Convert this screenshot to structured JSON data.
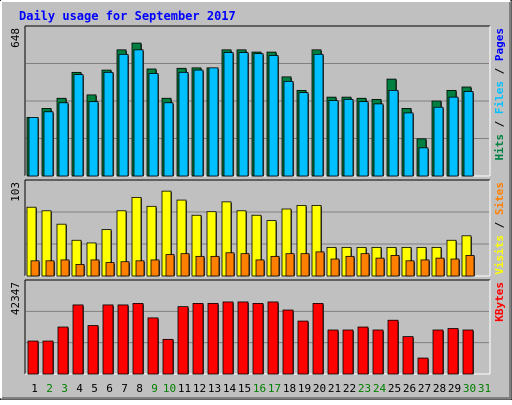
{
  "chart_data": {
    "type": "bar",
    "title": "Daily usage for September 2017",
    "x": [
      "1",
      "2",
      "3",
      "4",
      "5",
      "6",
      "7",
      "8",
      "9",
      "10",
      "11",
      "12",
      "13",
      "14",
      "15",
      "16",
      "17",
      "18",
      "19",
      "20",
      "21",
      "22",
      "23",
      "24",
      "25",
      "26",
      "27",
      "28",
      "29",
      "30",
      "31"
    ],
    "weekend_days": [
      "2",
      "3",
      "9",
      "10",
      "16",
      "17",
      "23",
      "24",
      "30",
      "31"
    ],
    "panels": [
      {
        "name": "hits-files-pages",
        "ylabel_parts": [
          "Pages",
          "Files",
          "Hits"
        ],
        "ymax_label": "648",
        "ylim": [
          0,
          648
        ],
        "series": [
          {
            "name": "Hits",
            "color": "#008040",
            "values": [
              260,
              300,
              345,
              460,
              360,
              470,
              560,
              590,
              475,
              345,
              478,
              480,
              480,
              560,
              560,
              550,
              550,
              440,
              380,
              560,
              350,
              350,
              345,
              340,
              430,
              300,
              165,
              333,
              380,
              395,
              0
            ]
          },
          {
            "name": "Files",
            "color": "#00c0ff",
            "values": [
              260,
              285,
              325,
              450,
              330,
              460,
              540,
              560,
              455,
              325,
              460,
              470,
              480,
              548,
              548,
              543,
              535,
              420,
              370,
              540,
              335,
              340,
              330,
              320,
              380,
              280,
              125,
              305,
              350,
              375,
              0
            ]
          },
          {
            "name": "Pages",
            "color": "#0000ff",
            "values": [
              0,
              0,
              0,
              0,
              0,
              0,
              0,
              0,
              0,
              0,
              0,
              0,
              0,
              0,
              0,
              0,
              0,
              0,
              0,
              0,
              0,
              0,
              0,
              0,
              0,
              0,
              0,
              0,
              0,
              0,
              0
            ]
          }
        ]
      },
      {
        "name": "visits-sites",
        "ylabel_parts": [
          "Sites",
          "Visits"
        ],
        "ymax_label": "103",
        "ylim": [
          0,
          103
        ],
        "series": [
          {
            "name": "Visits",
            "color": "#ffff00",
            "values": [
              77,
              73,
              58,
              40,
              37,
              52,
              73,
              88,
              78,
              95,
              85,
              68,
              72,
              83,
              73,
              68,
              62,
              75,
              79,
              79,
              32,
              32,
              32,
              32,
              32,
              32,
              32,
              32,
              40,
              45,
              0
            ]
          },
          {
            "name": "Sites",
            "color": "#ff8000",
            "values": [
              17,
              17,
              18,
              13,
              18,
              15,
              16,
              17,
              18,
              24,
              25,
              22,
              22,
              26,
              25,
              18,
              22,
              25,
              25,
              27,
              19,
              22,
              25,
              20,
              23,
              17,
              18,
              20,
              19,
              23,
              0
            ]
          }
        ]
      },
      {
        "name": "kbytes",
        "ylabel_parts": [
          "KBytes"
        ],
        "ymax_label": "42347",
        "ylim": [
          0,
          42347
        ],
        "series": [
          {
            "name": "KBytes",
            "color": "#ff0000",
            "values": [
              15500,
              15500,
              22100,
              32500,
              22800,
              32500,
              32500,
              33200,
              26400,
              16300,
              31700,
              33200,
              33200,
              33900,
              33900,
              33200,
              33900,
              30100,
              24900,
              33200,
              20700,
              20700,
              22100,
              20700,
              25300,
              17600,
              7500,
              20700,
              21400,
              20700,
              0
            ]
          }
        ]
      }
    ],
    "colors": {
      "background": "#c0c0c0",
      "border_light": "#ffffff",
      "border_dark": "#000000",
      "frame": "#a0a0a0",
      "title": "#0000ff",
      "weekday_label": "#000000",
      "weekend_label": "#008000",
      "bar_outline": "#000000",
      "bar_shadow": "#404040"
    }
  }
}
